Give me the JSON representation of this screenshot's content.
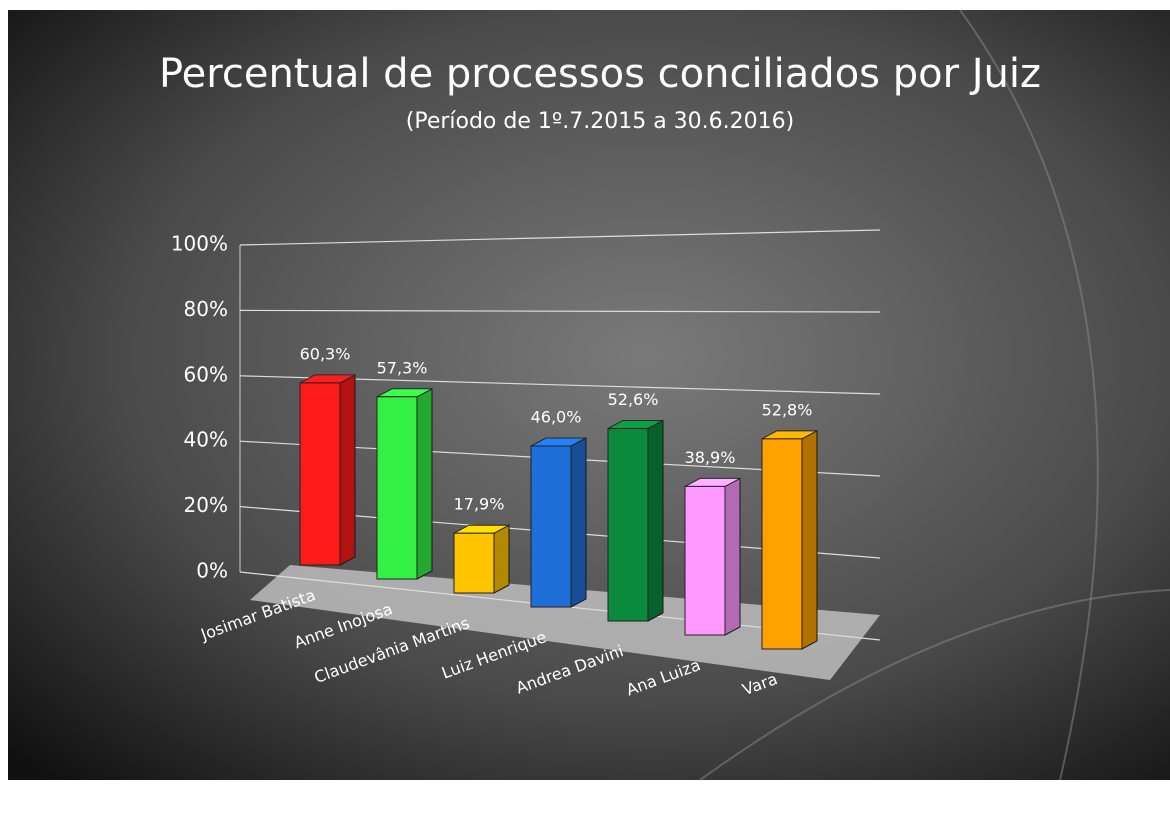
{
  "chart_data": {
    "type": "bar",
    "title": "Percentual de processos conciliados por Juiz",
    "subtitle": "(Período de 1º.7.2015  a  30.6.2016)",
    "categories": [
      "Josimar Batista",
      "Anne Inojosa",
      "Claudevânia Martins",
      "Luiz Henrique",
      "Andrea Davini",
      "Ana Luiza",
      "Vara"
    ],
    "values": [
      60.3,
      57.3,
      17.9,
      46.0,
      52.6,
      38.9,
      52.8
    ],
    "value_labels": [
      "60,3%",
      "57,3%",
      "17,9%",
      "46,0%",
      "52,6%",
      "38,9%",
      "52,8%"
    ],
    "colors": [
      "#ff1a1a",
      "#33f044",
      "#ffc400",
      "#1f6fd8",
      "#0a8a3c",
      "#ff99ff",
      "#ffa200"
    ],
    "ylim": [
      0,
      100
    ],
    "yticks": [
      {
        "value": 0,
        "label": "0%"
      },
      {
        "value": 20,
        "label": "20%"
      },
      {
        "value": 40,
        "label": "40%"
      },
      {
        "value": 60,
        "label": "60%"
      },
      {
        "value": 80,
        "label": "80%"
      },
      {
        "value": 100,
        "label": "100%"
      }
    ],
    "grid": true
  }
}
